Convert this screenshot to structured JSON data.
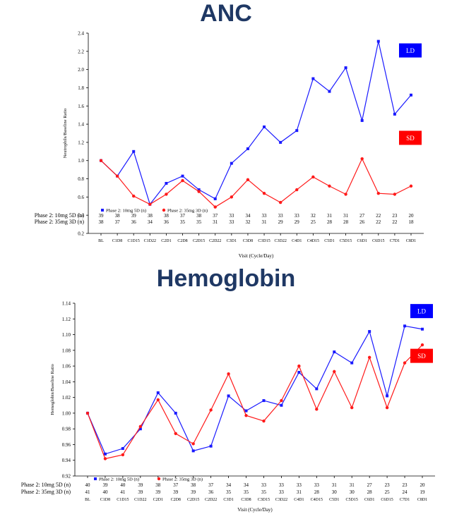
{
  "chart_data": [
    {
      "type": "line",
      "title": "ANC",
      "xlabel": "Visit (Cycle/Day)",
      "ylabel": "Neutrophils/Baseline Ratio",
      "ylim": [
        0.2,
        2.4
      ],
      "yticks": [
        0.2,
        0.4,
        0.6,
        0.8,
        1.0,
        1.2,
        1.4,
        1.6,
        1.8,
        2.0,
        2.2,
        2.4
      ],
      "categories": [
        "BL",
        "C1D8",
        "C1D15",
        "C1D22",
        "C2D1",
        "C2D8",
        "C2D15",
        "C2D22",
        "C3D1",
        "C3D8",
        "C3D15",
        "C3D22",
        "C4D1",
        "C4D15",
        "C5D1",
        "C5D15",
        "C6D1",
        "C6D15",
        "C7D1",
        "C8D1"
      ],
      "series": [
        {
          "name": "Phase 2: 10mg 5D (n)",
          "color": "#1a1aff",
          "marker": "square",
          "values": [
            1.0,
            0.83,
            1.1,
            0.52,
            0.75,
            0.83,
            0.68,
            0.58,
            0.97,
            1.13,
            1.37,
            1.2,
            1.33,
            1.9,
            1.76,
            2.02,
            1.44,
            2.31,
            1.51,
            1.72
          ]
        },
        {
          "name": "Phase 2: 35mg 3D (n)",
          "color": "#ff1a1a",
          "marker": "circle",
          "values": [
            1.0,
            0.83,
            0.61,
            0.52,
            0.63,
            0.78,
            0.66,
            0.49,
            0.6,
            0.79,
            0.64,
            0.54,
            0.68,
            0.82,
            0.72,
            0.63,
            1.02,
            0.64,
            0.63,
            0.72
          ]
        }
      ],
      "n_table": [
        {
          "label": "Phase 2: 10mg 5D (n)",
          "values": [
            "39",
            "38",
            "39",
            "38",
            "38",
            "37",
            "38",
            "37",
            "33",
            "34",
            "33",
            "33",
            "33",
            "32",
            "31",
            "31",
            "27",
            "22",
            "23",
            "20"
          ]
        },
        {
          "label": "Phase 2: 35mg 3D (n)",
          "values": [
            "38",
            "37",
            "36",
            "34",
            "36",
            "35",
            "35",
            "31",
            "33",
            "32",
            "31",
            "29",
            "29",
            "25",
            "28",
            "28",
            "26",
            "22",
            "22",
            "18"
          ]
        }
      ],
      "badges": [
        {
          "text": "LD",
          "color": "#0000ff",
          "y_value": 2.21
        },
        {
          "text": "SD",
          "color": "#ff0000",
          "y_value": 1.25
        }
      ]
    },
    {
      "type": "line",
      "title": "Hemoglobin",
      "xlabel": "Visit (Cycle/Day)",
      "ylabel": "Hemoglobin/Baseline Ratio",
      "ylim": [
        0.92,
        1.14
      ],
      "yticks": [
        0.92,
        0.94,
        0.96,
        0.98,
        1.0,
        1.02,
        1.04,
        1.06,
        1.08,
        1.1,
        1.12,
        1.14
      ],
      "categories": [
        "BL",
        "C1D8",
        "C1D15",
        "C1D22",
        "C2D1",
        "C2D8",
        "C2D15",
        "C2D22",
        "C3D1",
        "C3D8",
        "C3D15",
        "C3D22",
        "C4D1",
        "C4D15",
        "C5D1",
        "C5D15",
        "C6D1",
        "C6D15",
        "C7D1",
        "C8D1"
      ],
      "series": [
        {
          "name": "Phase 2: 10mg 5D (n)",
          "color": "#1a1aff",
          "marker": "square",
          "values": [
            1.0,
            0.948,
            0.955,
            0.98,
            1.026,
            1.0,
            0.952,
            0.958,
            1.022,
            1.003,
            1.016,
            1.01,
            1.052,
            1.031,
            1.078,
            1.064,
            1.104,
            1.022,
            1.111,
            1.107
          ]
        },
        {
          "name": "Phase 2: 35mg 3D (n)",
          "color": "#ff1a1a",
          "marker": "circle",
          "values": [
            1.0,
            0.942,
            0.947,
            0.983,
            1.017,
            0.974,
            0.961,
            1.004,
            1.05,
            0.997,
            0.99,
            1.016,
            1.06,
            1.005,
            1.053,
            1.007,
            1.071,
            1.007,
            1.064,
            1.087
          ]
        }
      ],
      "n_table": [
        {
          "label": "Phase 2: 10mg 5D (n)",
          "values": [
            "40",
            "39",
            "40",
            "39",
            "38",
            "37",
            "38",
            "37",
            "34",
            "34",
            "33",
            "33",
            "33",
            "33",
            "31",
            "31",
            "27",
            "23",
            "23",
            "20"
          ]
        },
        {
          "label": "Phase 2: 35mg 3D (n)",
          "values": [
            "41",
            "40",
            "41",
            "39",
            "39",
            "39",
            "39",
            "36",
            "35",
            "35",
            "35",
            "33",
            "31",
            "28",
            "30",
            "30",
            "28",
            "25",
            "24",
            "19"
          ]
        }
      ],
      "badges": [
        {
          "text": "LD",
          "color": "#0000ff",
          "y_value": 1.13
        },
        {
          "text": "SD",
          "color": "#ff0000",
          "y_value": 1.073
        }
      ]
    }
  ]
}
